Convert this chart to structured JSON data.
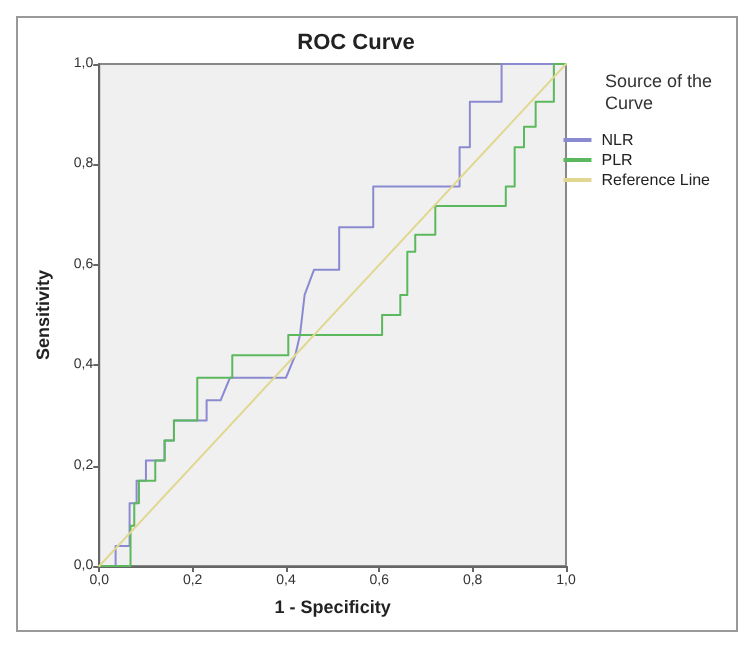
{
  "chart_data": {
    "type": "line",
    "title": "ROC Curve",
    "xlabel": "1 - Specificity",
    "ylabel": "Sensitivity",
    "legend_title": "Source of the Curve",
    "legend": "top right",
    "grid": false,
    "marker": "none",
    "line_style": "solid",
    "xlim": [
      0,
      1
    ],
    "ylim": [
      0,
      1
    ],
    "xticks": [
      {
        "value": 0,
        "label": "0,0"
      },
      {
        "value": 0.2,
        "label": "0,2"
      },
      {
        "value": 0.4,
        "label": "0,4"
      },
      {
        "value": 0.6,
        "label": "0,6"
      },
      {
        "value": 0.8,
        "label": "0,8"
      },
      {
        "value": 1,
        "label": "1,0"
      }
    ],
    "yticks": [
      {
        "value": 0,
        "label": "0,0"
      },
      {
        "value": 0.2,
        "label": "0,2"
      },
      {
        "value": 0.4,
        "label": "0,4"
      },
      {
        "value": 0.6,
        "label": "0,6"
      },
      {
        "value": 0.8,
        "label": "0,8"
      },
      {
        "value": 1,
        "label": "1,0"
      }
    ],
    "series": [
      {
        "name": "NLR",
        "color": "#8a8ad0",
        "x": [
          0,
          0.035,
          0.035,
          0.065,
          0.065,
          0.08,
          0.08,
          0.1,
          0.1,
          0.14,
          0.14,
          0.16,
          0.16,
          0.23,
          0.23,
          0.26,
          0.28,
          0.4,
          0.42,
          0.43,
          0.44,
          0.46,
          0.514,
          0.514,
          0.587,
          0.587,
          0.772,
          0.772,
          0.794,
          0.794,
          0.862,
          0.862,
          1
        ],
        "values": [
          0,
          0,
          0.04,
          0.04,
          0.125,
          0.125,
          0.17,
          0.17,
          0.21,
          0.21,
          0.25,
          0.25,
          0.29,
          0.29,
          0.33,
          0.33,
          0.375,
          0.375,
          0.42,
          0.46,
          0.54,
          0.59,
          0.59,
          0.675,
          0.675,
          0.756,
          0.756,
          0.834,
          0.834,
          0.925,
          0.925,
          1,
          1
        ]
      },
      {
        "name": "PLR",
        "color": "#5cb85c",
        "x": [
          0,
          0.067,
          0.067,
          0.075,
          0.075,
          0.085,
          0.085,
          0.12,
          0.12,
          0.14,
          0.14,
          0.16,
          0.16,
          0.21,
          0.21,
          0.285,
          0.285,
          0.405,
          0.405,
          0.606,
          0.606,
          0.645,
          0.645,
          0.66,
          0.66,
          0.677,
          0.677,
          0.72,
          0.72,
          0.748,
          0.748,
          0.871,
          0.871,
          0.89,
          0.89,
          0.91,
          0.91,
          0.935,
          0.935,
          0.974,
          0.974,
          1
        ],
        "values": [
          0,
          0,
          0.08,
          0.08,
          0.125,
          0.125,
          0.17,
          0.17,
          0.21,
          0.21,
          0.25,
          0.25,
          0.29,
          0.29,
          0.375,
          0.375,
          0.42,
          0.42,
          0.46,
          0.46,
          0.5,
          0.5,
          0.54,
          0.54,
          0.626,
          0.626,
          0.66,
          0.66,
          0.717,
          0.717,
          0.717,
          0.717,
          0.756,
          0.756,
          0.834,
          0.834,
          0.875,
          0.875,
          0.925,
          0.925,
          1,
          1
        ]
      },
      {
        "name": "Reference Line",
        "color": "#e0d890",
        "x": [
          0,
          1
        ],
        "values": [
          0,
          1
        ]
      }
    ]
  }
}
